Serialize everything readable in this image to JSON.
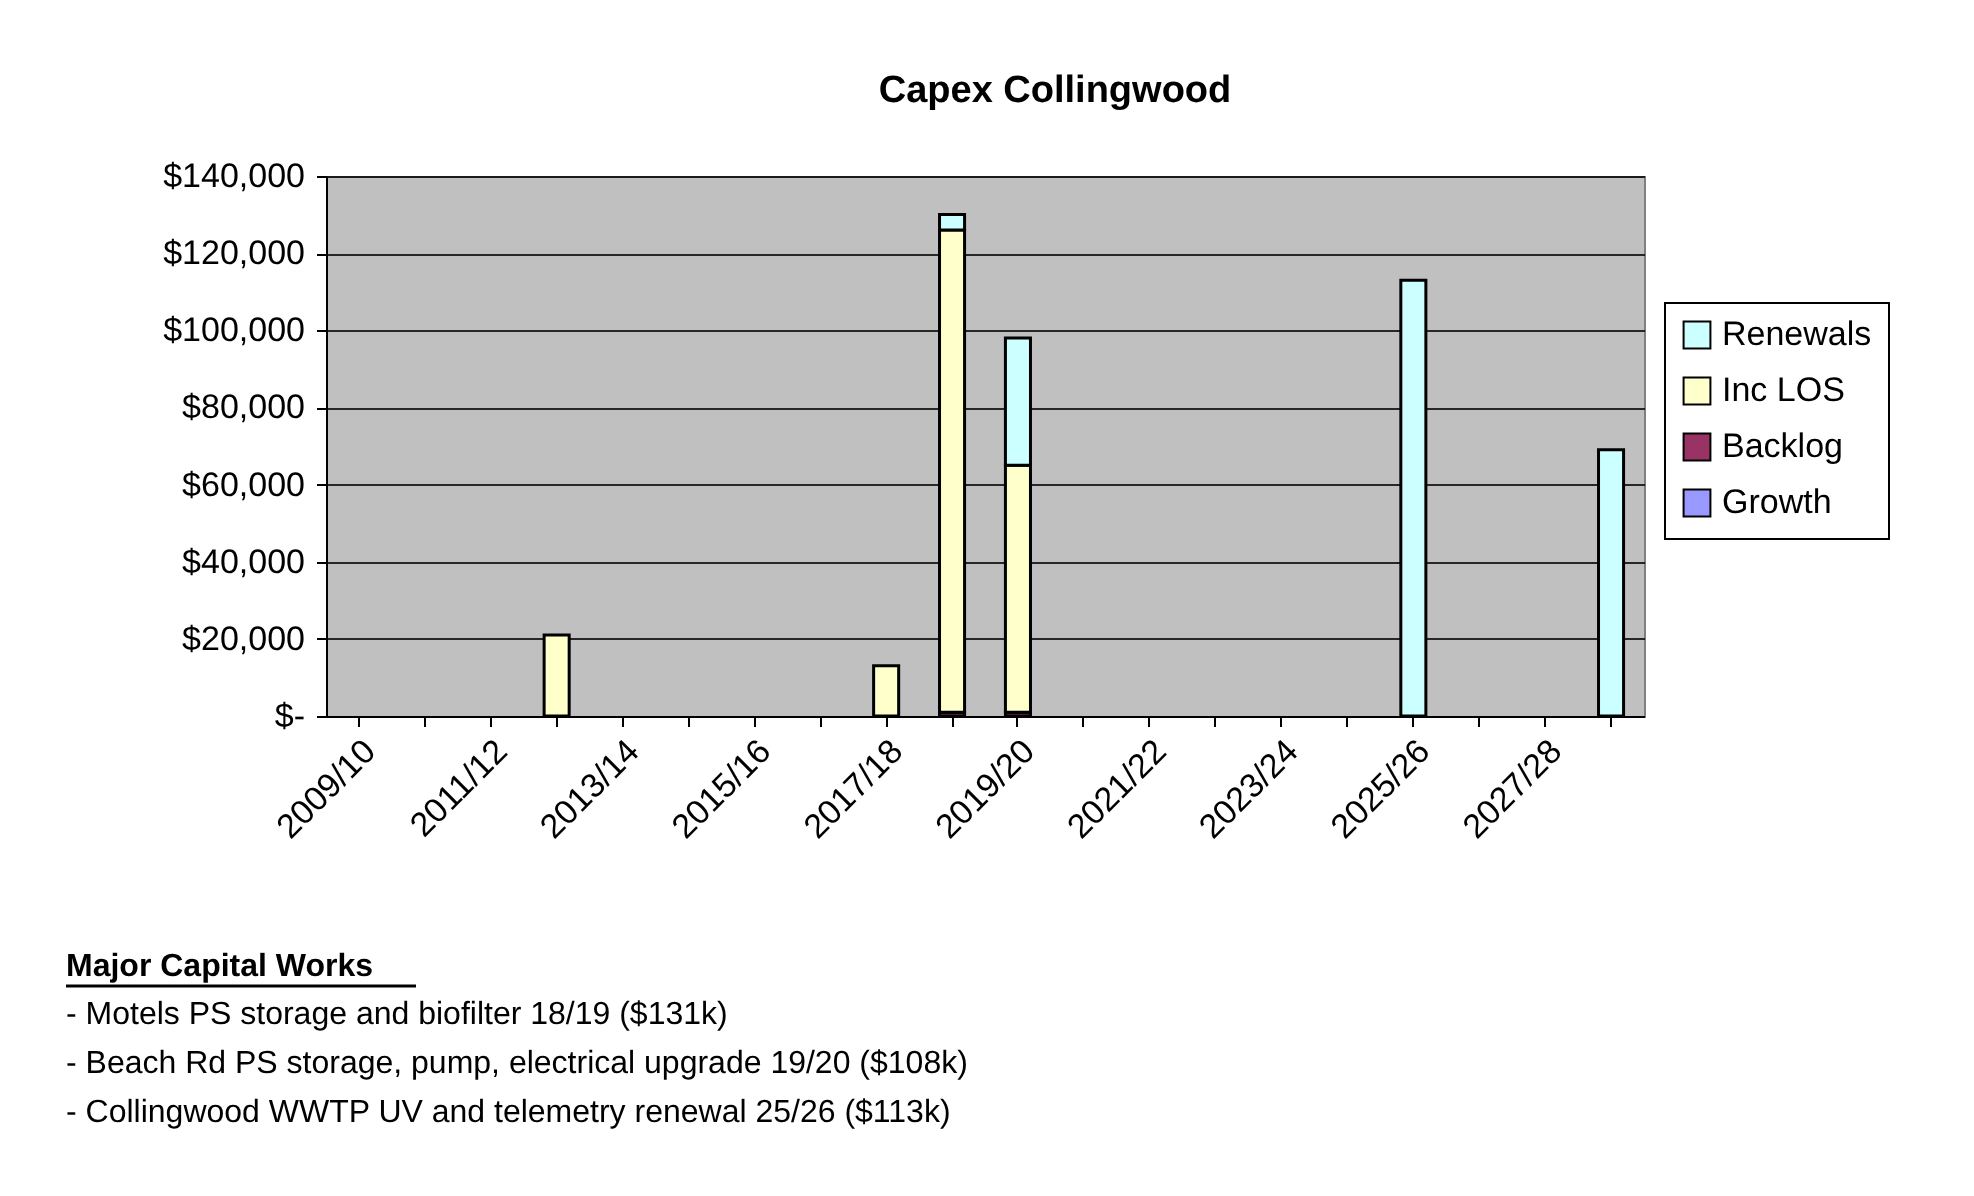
{
  "chart_data": {
    "type": "bar",
    "title": "Capex Collingwood",
    "stacked": true,
    "categories": [
      "2009/10",
      null,
      "2011/12",
      null,
      "2013/14",
      null,
      "2015/16",
      null,
      "2017/18",
      null,
      "2019/20",
      null,
      "2021/22",
      null,
      "2023/24",
      null,
      "2025/26",
      null,
      "2027/28",
      null
    ],
    "series": [
      {
        "name": "Growth",
        "color": "#9999ff",
        "values": [
          null,
          null,
          null,
          null,
          null,
          null,
          null,
          null,
          null,
          null,
          null,
          null,
          null,
          null,
          null,
          null,
          null,
          null,
          null,
          null
        ]
      },
      {
        "name": "Backlog",
        "color": "#993366",
        "values": [
          null,
          null,
          null,
          null,
          null,
          null,
          null,
          null,
          null,
          1000,
          1000,
          null,
          null,
          null,
          null,
          null,
          null,
          null,
          null,
          null
        ]
      },
      {
        "name": "Inc LOS",
        "color": "#ffffcc",
        "values": [
          null,
          null,
          null,
          21000,
          null,
          null,
          null,
          null,
          13000,
          125000,
          64000,
          null,
          null,
          null,
          null,
          null,
          null,
          null,
          null,
          null
        ]
      },
      {
        "name": "Renewals",
        "color": "#ccffff",
        "values": [
          null,
          null,
          null,
          null,
          null,
          null,
          null,
          null,
          null,
          4000,
          33000,
          null,
          null,
          null,
          null,
          null,
          113000,
          null,
          null,
          69000
        ]
      }
    ],
    "ylim": [
      0,
      140000
    ],
    "yticks": [
      {
        "value": 0,
        "label": "$-"
      },
      {
        "value": 20000,
        "label": "$20,000"
      },
      {
        "value": 40000,
        "label": "$40,000"
      },
      {
        "value": 60000,
        "label": "$60,000"
      },
      {
        "value": 80000,
        "label": "$80,000"
      },
      {
        "value": 100000,
        "label": "$100,000"
      },
      {
        "value": 120000,
        "label": "$120,000"
      },
      {
        "value": 140000,
        "label": "$140,000"
      }
    ],
    "grid": "y",
    "legend": "right",
    "annotations": [
      "Major Capital Works",
      "- Motels PS storage and biofilter 18/19 ($131k)",
      "- Beach Rd PS storage, pump, electrical upgrade 19/20 ($108k)",
      "- Collingwood WWTP UV and telemetry renewal 25/26 ($113k)"
    ]
  }
}
